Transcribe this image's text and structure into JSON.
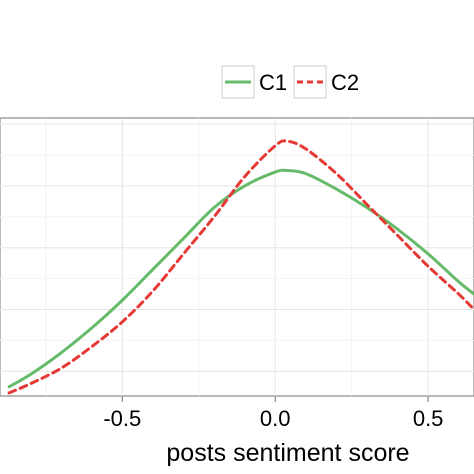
{
  "chart_data": {
    "type": "line",
    "title": "",
    "xlabel": "posts sentiment score",
    "ylabel": "",
    "xlim": [
      -0.9,
      0.65
    ],
    "ylim": [
      0.22,
      1.12
    ],
    "grid": true,
    "legend_position": "top-right",
    "x_ticks": [
      {
        "value": -0.5,
        "label": "-0.5"
      },
      {
        "value": 0.0,
        "label": "0.0"
      },
      {
        "value": 0.5,
        "label": "0.5"
      }
    ],
    "series": [
      {
        "name": "C1",
        "color": "#66bb6a",
        "dash": "solid",
        "x": [
          -0.87,
          -0.8,
          -0.7,
          -0.6,
          -0.5,
          -0.4,
          -0.3,
          -0.2,
          -0.1,
          0.0,
          0.04,
          0.1,
          0.2,
          0.3,
          0.4,
          0.5,
          0.6,
          0.65
        ],
        "y": [
          0.25,
          0.29,
          0.36,
          0.44,
          0.53,
          0.63,
          0.73,
          0.83,
          0.9,
          0.945,
          0.95,
          0.94,
          0.89,
          0.83,
          0.76,
          0.68,
          0.59,
          0.55
        ]
      },
      {
        "name": "C2",
        "color": "#e53935",
        "dash": "dashed",
        "x": [
          -0.87,
          -0.8,
          -0.7,
          -0.6,
          -0.5,
          -0.4,
          -0.3,
          -0.2,
          -0.1,
          0.0,
          0.04,
          0.1,
          0.2,
          0.3,
          0.4,
          0.5,
          0.6,
          0.65
        ],
        "y": [
          0.23,
          0.26,
          0.31,
          0.38,
          0.46,
          0.56,
          0.68,
          0.8,
          0.93,
          1.03,
          1.045,
          1.02,
          0.94,
          0.84,
          0.74,
          0.64,
          0.55,
          0.5
        ]
      }
    ]
  }
}
